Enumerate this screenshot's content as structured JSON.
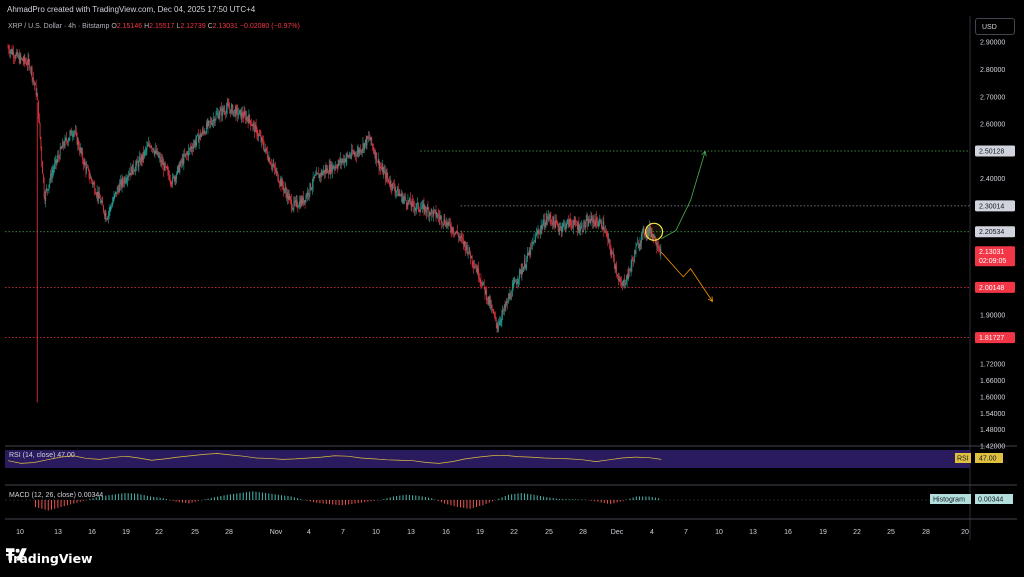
{
  "header": {
    "creator": "AhmadPro created with TradingView.com, Dec 04, 2025 17:50 UTC+4"
  },
  "symbol": {
    "name": "XRP / U.S. Dollar · 4h · Bitstamp",
    "open_label": "O",
    "open": "2.15146",
    "high_label": "H",
    "high": "2.15517",
    "low_label": "L",
    "low": "2.12739",
    "close_label": "C",
    "close": "2.13031",
    "change": "−0.02080 (−0.97%)"
  },
  "currency_button": "USD",
  "brand": {
    "name": "TradingView"
  },
  "colors": {
    "up": "#26a69a",
    "down": "#f23645",
    "bg": "#000000",
    "text": "#d1d4dc",
    "rsi_band": "#2a1a5e",
    "rsi_line": "#e0c040",
    "projection_up": "#4caf50",
    "projection_down": "#ff9800",
    "marker": "#f5e642"
  },
  "chart_data": {
    "type": "candlestick",
    "price_axis": [
      "2.90000",
      "2.80000",
      "2.70000",
      "2.60000",
      "2.40000",
      "1.90000",
      "1.72000",
      "1.66000",
      "1.60000",
      "1.54000",
      "1.48000",
      "1.42000"
    ],
    "time_axis": [
      "10",
      "13",
      "16",
      "19",
      "22",
      "25",
      "28",
      "Nov",
      "4",
      "7",
      "10",
      "13",
      "16",
      "19",
      "22",
      "25",
      "28",
      "Dec",
      "4",
      "7",
      "10",
      "13",
      "16",
      "19",
      "22",
      "25",
      "28",
      "20"
    ],
    "ylim": [
      1.42,
      2.93
    ],
    "horizontal_levels": [
      {
        "label": "2.50128",
        "value": 2.50128,
        "style": "dotted",
        "color": "#4caf50"
      },
      {
        "label": "2.30014",
        "value": 2.30014,
        "style": "dotted",
        "color": "#9598a1"
      },
      {
        "label": "2.20534",
        "value": 2.20534,
        "style": "dotted",
        "color": "#4caf50"
      },
      {
        "label": "2.00148",
        "value": 2.00148,
        "style": "dotted",
        "color": "#f23645"
      },
      {
        "label": "1.81727",
        "value": 1.81727,
        "style": "dotted",
        "color": "#f23645"
      }
    ],
    "current_price": {
      "label": "2.13031",
      "countdown": "02:09:05",
      "value": 2.13031
    },
    "close_path": [
      [
        0,
        2.88
      ],
      [
        3,
        2.84
      ],
      [
        6,
        2.82
      ],
      [
        8,
        2.7
      ],
      [
        10,
        2.33
      ],
      [
        12,
        2.42
      ],
      [
        15,
        2.52
      ],
      [
        18,
        2.58
      ],
      [
        21,
        2.45
      ],
      [
        24,
        2.36
      ],
      [
        27,
        2.26
      ],
      [
        30,
        2.36
      ],
      [
        33,
        2.42
      ],
      [
        36,
        2.46
      ],
      [
        39,
        2.53
      ],
      [
        42,
        2.46
      ],
      [
        45,
        2.39
      ],
      [
        48,
        2.47
      ],
      [
        51,
        2.53
      ],
      [
        54,
        2.58
      ],
      [
        57,
        2.63
      ],
      [
        60,
        2.66
      ],
      [
        63,
        2.64
      ],
      [
        66,
        2.62
      ],
      [
        69,
        2.55
      ],
      [
        72,
        2.46
      ],
      [
        75,
        2.38
      ],
      [
        78,
        2.3
      ],
      [
        81,
        2.32
      ],
      [
        84,
        2.4
      ],
      [
        87,
        2.43
      ],
      [
        90,
        2.45
      ],
      [
        93,
        2.48
      ],
      [
        96,
        2.5
      ],
      [
        99,
        2.55
      ],
      [
        102,
        2.44
      ],
      [
        105,
        2.38
      ],
      [
        108,
        2.33
      ],
      [
        111,
        2.3
      ],
      [
        114,
        2.29
      ],
      [
        117,
        2.27
      ],
      [
        120,
        2.24
      ],
      [
        123,
        2.2
      ],
      [
        126,
        2.14
      ],
      [
        129,
        2.05
      ],
      [
        132,
        1.94
      ],
      [
        134,
        1.86
      ],
      [
        136,
        1.92
      ],
      [
        139,
        2.02
      ],
      [
        142,
        2.1
      ],
      [
        145,
        2.2
      ],
      [
        148,
        2.26
      ],
      [
        151,
        2.22
      ],
      [
        154,
        2.24
      ],
      [
        157,
        2.22
      ],
      [
        160,
        2.25
      ],
      [
        163,
        2.23
      ],
      [
        166,
        2.1
      ],
      [
        168,
        2.0
      ],
      [
        170,
        2.05
      ],
      [
        172,
        2.14
      ],
      [
        174,
        2.2
      ],
      [
        176,
        2.21
      ],
      [
        178,
        2.16
      ],
      [
        179,
        2.13
      ]
    ],
    "projections": [
      {
        "direction": "up",
        "points": [
          [
            179,
            2.18
          ],
          [
            183,
            2.21
          ],
          [
            187,
            2.32
          ],
          [
            191,
            2.5
          ]
        ]
      },
      {
        "direction": "down",
        "points": [
          [
            179,
            2.13
          ],
          [
            185,
            2.04
          ],
          [
            187,
            2.07
          ],
          [
            193,
            1.95
          ]
        ]
      }
    ],
    "marker_point": [
      177,
      2.205
    ],
    "rsi": {
      "label": "RSI (14, close)",
      "value": "47.00",
      "axis_label": "RSI",
      "values": [
        44,
        38,
        40,
        46,
        52,
        55,
        49,
        47,
        51,
        54,
        50,
        45,
        48,
        52,
        55,
        58,
        60,
        57,
        54,
        50,
        49,
        47,
        48,
        50,
        52,
        55,
        54,
        50,
        48,
        46,
        45,
        44,
        40,
        38,
        42,
        48,
        52,
        55,
        56,
        53,
        52,
        50,
        49,
        48,
        46,
        42,
        46,
        50,
        52,
        51,
        47
      ]
    },
    "macd": {
      "label": "MACD (12, 26, close)",
      "value": "0.00344",
      "axis_label": "Histogram",
      "values": [
        -0.02,
        -0.03,
        -0.02,
        -0.01,
        0.0,
        0.01,
        0.015,
        0.02,
        0.018,
        0.01,
        0.005,
        -0.005,
        -0.01,
        0.0,
        0.008,
        0.015,
        0.02,
        0.025,
        0.02,
        0.015,
        0.01,
        0.0,
        -0.008,
        -0.012,
        -0.015,
        -0.01,
        -0.005,
        0.0,
        0.01,
        0.015,
        0.012,
        0.005,
        -0.01,
        -0.02,
        -0.025,
        -0.015,
        0.0,
        0.015,
        0.02,
        0.015,
        0.008,
        0.003,
        0.002,
        0.001,
        -0.005,
        -0.012,
        -0.002,
        0.01,
        0.01,
        0.00344
      ]
    }
  }
}
